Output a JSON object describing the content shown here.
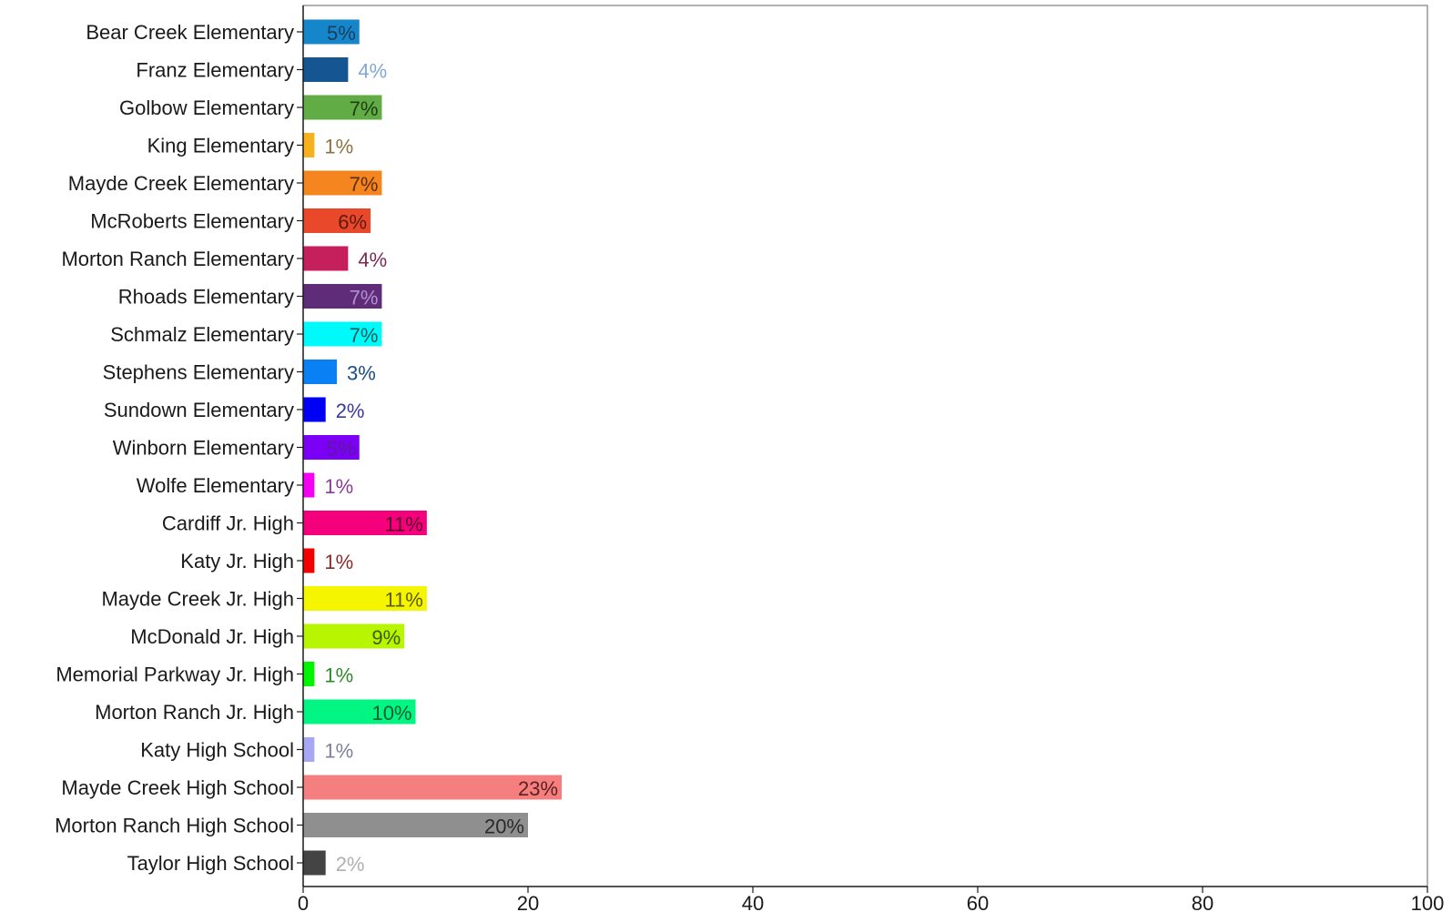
{
  "chart_data": {
    "type": "bar",
    "orientation": "horizontal",
    "title": "",
    "xlabel": "",
    "ylabel": "",
    "xlim": [
      0,
      100
    ],
    "xticks": [
      0,
      20,
      40,
      60,
      80,
      100
    ],
    "grid": false,
    "categories": [
      "Bear Creek Elementary",
      "Franz Elementary",
      "Golbow Elementary",
      "King Elementary",
      "Mayde Creek Elementary",
      "McRoberts Elementary",
      "Morton Ranch Elementary",
      "Rhoads Elementary",
      "Schmalz Elementary",
      "Stephens Elementary",
      "Sundown Elementary",
      "Winborn Elementary",
      "Wolfe Elementary",
      "Cardiff Jr. High",
      "Katy Jr. High",
      "Mayde Creek Jr. High",
      "McDonald Jr. High",
      "Memorial Parkway Jr. High",
      "Morton Ranch Jr. High",
      "Katy High School",
      "Mayde Creek High School",
      "Morton Ranch High School",
      "Taylor High School"
    ],
    "values": [
      5,
      4,
      7,
      1,
      7,
      6,
      4,
      7,
      7,
      3,
      2,
      5,
      1,
      11,
      1,
      11,
      9,
      1,
      10,
      1,
      23,
      20,
      2
    ],
    "value_labels": [
      "5%",
      "4%",
      "7%",
      "1%",
      "7%",
      "6%",
      "4%",
      "7%",
      "7%",
      "3%",
      "2%",
      "5%",
      "1%",
      "11%",
      "1%",
      "11%",
      "9%",
      "1%",
      "10%",
      "1%",
      "23%",
      "20%",
      "2%"
    ],
    "bar_colors": [
      "#1586c9",
      "#155591",
      "#62ac46",
      "#f7b11c",
      "#f5851f",
      "#e9482b",
      "#c5205c",
      "#5e2c78",
      "#00fafa",
      "#0a80f5",
      "#0000f5",
      "#7c00f5",
      "#f500f5",
      "#f5007c",
      "#f50000",
      "#f5f500",
      "#b8f500",
      "#00f500",
      "#00f582",
      "#a6a8f5",
      "#f57f7f",
      "#8f8f8f",
      "#444444"
    ],
    "label_colors": [
      "#1a3d5c",
      "#7fa8d6",
      "#1e3d12",
      "#8a7240",
      "#5c2e10",
      "#5c1a10",
      "#7a2a52",
      "#b48fd0",
      "#0a5c5c",
      "#1a4d85",
      "#3a3a99",
      "#5a1a9a",
      "#8a3a9a",
      "#5c002a",
      "#8a2a2a",
      "#5c5c00",
      "#3d5c00",
      "#2a8a2a",
      "#0a5c30",
      "#7f7f9a",
      "#5c2020",
      "#2a2a2a",
      "#b0b0b0"
    ]
  }
}
